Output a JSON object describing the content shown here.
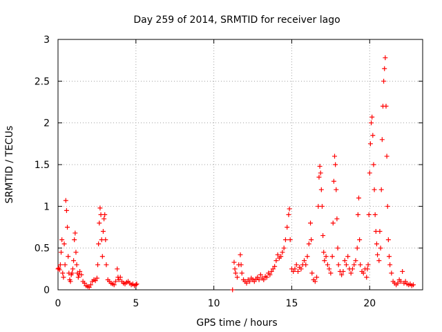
{
  "chart_data": {
    "type": "scatter",
    "title": "Day 259 of 2014, SRMTID for receiver lago",
    "xlabel": "GPS time / hours",
    "ylabel": "SRMTID / TECUs",
    "xlim": [
      0,
      23.4
    ],
    "ylim": [
      0,
      3
    ],
    "xticks": [
      0,
      5,
      10,
      15,
      20
    ],
    "xtick_labels": [
      "0",
      "5",
      "10",
      "15",
      "20"
    ],
    "yticks": [
      0,
      0.5,
      1,
      1.5,
      2,
      2.5,
      3
    ],
    "ytick_labels": [
      "0",
      "0.5",
      "1",
      "1.5",
      "2",
      "2.5",
      "3"
    ],
    "grid": true,
    "marker": "+",
    "marker_color": "#ff0000",
    "series": [
      {
        "name": "SRMTID",
        "points": [
          [
            0.0,
            0.25
          ],
          [
            0.05,
            0.26
          ],
          [
            0.1,
            0.24
          ],
          [
            0.15,
            0.3
          ],
          [
            0.2,
            0.45
          ],
          [
            0.25,
            0.6
          ],
          [
            0.3,
            0.2
          ],
          [
            0.35,
            0.15
          ],
          [
            0.4,
            0.55
          ],
          [
            0.45,
            0.3
          ],
          [
            0.5,
            1.07
          ],
          [
            0.55,
            0.95
          ],
          [
            0.6,
            0.75
          ],
          [
            0.65,
            0.4
          ],
          [
            0.7,
            0.2
          ],
          [
            0.75,
            0.12
          ],
          [
            0.8,
            0.1
          ],
          [
            0.85,
            0.18
          ],
          [
            0.9,
            0.2
          ],
          [
            0.95,
            0.25
          ],
          [
            1.0,
            0.35
          ],
          [
            1.05,
            0.6
          ],
          [
            1.1,
            0.68
          ],
          [
            1.15,
            0.45
          ],
          [
            1.2,
            0.3
          ],
          [
            1.25,
            0.2
          ],
          [
            1.3,
            0.15
          ],
          [
            1.35,
            0.18
          ],
          [
            1.4,
            0.22
          ],
          [
            1.5,
            0.18
          ],
          [
            1.6,
            0.1
          ],
          [
            1.7,
            0.08
          ],
          [
            1.8,
            0.05
          ],
          [
            1.9,
            0.04
          ],
          [
            2.0,
            0.03
          ],
          [
            2.1,
            0.06
          ],
          [
            2.2,
            0.1
          ],
          [
            2.3,
            0.12
          ],
          [
            2.4,
            0.11
          ],
          [
            2.5,
            0.14
          ],
          [
            2.55,
            0.3
          ],
          [
            2.6,
            0.55
          ],
          [
            2.65,
            0.8
          ],
          [
            2.7,
            0.98
          ],
          [
            2.75,
            0.9
          ],
          [
            2.8,
            0.6
          ],
          [
            2.85,
            0.4
          ],
          [
            2.9,
            0.7
          ],
          [
            2.95,
            0.85
          ],
          [
            3.0,
            0.9
          ],
          [
            3.05,
            0.6
          ],
          [
            3.1,
            0.3
          ],
          [
            3.2,
            0.12
          ],
          [
            3.3,
            0.1
          ],
          [
            3.4,
            0.08
          ],
          [
            3.5,
            0.07
          ],
          [
            3.6,
            0.06
          ],
          [
            3.7,
            0.1
          ],
          [
            3.8,
            0.25
          ],
          [
            3.85,
            0.15
          ],
          [
            3.9,
            0.12
          ],
          [
            4.0,
            0.15
          ],
          [
            4.1,
            0.1
          ],
          [
            4.2,
            0.08
          ],
          [
            4.3,
            0.07
          ],
          [
            4.4,
            0.09
          ],
          [
            4.5,
            0.1
          ],
          [
            4.6,
            0.08
          ],
          [
            4.7,
            0.06
          ],
          [
            4.8,
            0.07
          ],
          [
            4.9,
            0.05
          ],
          [
            5.0,
            0.06
          ],
          [
            5.05,
            0.07
          ],
          [
            11.2,
            0.0
          ],
          [
            11.3,
            0.33
          ],
          [
            11.35,
            0.25
          ],
          [
            11.4,
            0.2
          ],
          [
            11.5,
            0.15
          ],
          [
            11.6,
            0.3
          ],
          [
            11.7,
            0.42
          ],
          [
            11.75,
            0.3
          ],
          [
            11.8,
            0.2
          ],
          [
            11.9,
            0.12
          ],
          [
            12.0,
            0.1
          ],
          [
            12.1,
            0.08
          ],
          [
            12.2,
            0.12
          ],
          [
            12.3,
            0.1
          ],
          [
            12.4,
            0.14
          ],
          [
            12.5,
            0.12
          ],
          [
            12.6,
            0.1
          ],
          [
            12.7,
            0.13
          ],
          [
            12.8,
            0.15
          ],
          [
            12.9,
            0.12
          ],
          [
            13.0,
            0.18
          ],
          [
            13.1,
            0.14
          ],
          [
            13.2,
            0.12
          ],
          [
            13.3,
            0.16
          ],
          [
            13.4,
            0.15
          ],
          [
            13.5,
            0.2
          ],
          [
            13.6,
            0.18
          ],
          [
            13.7,
            0.22
          ],
          [
            13.8,
            0.25
          ],
          [
            13.9,
            0.28
          ],
          [
            14.0,
            0.35
          ],
          [
            14.1,
            0.42
          ],
          [
            14.2,
            0.38
          ],
          [
            14.3,
            0.4
          ],
          [
            14.4,
            0.45
          ],
          [
            14.5,
            0.5
          ],
          [
            14.6,
            0.6
          ],
          [
            14.7,
            0.75
          ],
          [
            14.8,
            0.9
          ],
          [
            14.85,
            0.97
          ],
          [
            14.9,
            0.6
          ],
          [
            15.0,
            0.25
          ],
          [
            15.1,
            0.22
          ],
          [
            15.2,
            0.25
          ],
          [
            15.3,
            0.3
          ],
          [
            15.4,
            0.22
          ],
          [
            15.5,
            0.27
          ],
          [
            15.6,
            0.25
          ],
          [
            15.7,
            0.3
          ],
          [
            15.8,
            0.35
          ],
          [
            15.9,
            0.3
          ],
          [
            16.0,
            0.4
          ],
          [
            16.1,
            0.55
          ],
          [
            16.2,
            0.8
          ],
          [
            16.25,
            0.6
          ],
          [
            16.3,
            0.2
          ],
          [
            16.4,
            0.12
          ],
          [
            16.5,
            0.1
          ],
          [
            16.6,
            0.15
          ],
          [
            16.7,
            1.0
          ],
          [
            16.75,
            1.35
          ],
          [
            16.8,
            1.48
          ],
          [
            16.85,
            1.4
          ],
          [
            16.9,
            1.2
          ],
          [
            16.95,
            1.0
          ],
          [
            17.0,
            0.65
          ],
          [
            17.05,
            0.45
          ],
          [
            17.1,
            0.35
          ],
          [
            17.2,
            0.4
          ],
          [
            17.3,
            0.3
          ],
          [
            17.4,
            0.25
          ],
          [
            17.5,
            0.2
          ],
          [
            17.6,
            0.4
          ],
          [
            17.65,
            0.8
          ],
          [
            17.7,
            1.3
          ],
          [
            17.75,
            1.6
          ],
          [
            17.8,
            1.5
          ],
          [
            17.85,
            1.2
          ],
          [
            17.9,
            0.85
          ],
          [
            17.95,
            0.5
          ],
          [
            18.0,
            0.3
          ],
          [
            18.1,
            0.22
          ],
          [
            18.2,
            0.18
          ],
          [
            18.3,
            0.22
          ],
          [
            18.4,
            0.35
          ],
          [
            18.5,
            0.3
          ],
          [
            18.6,
            0.4
          ],
          [
            18.7,
            0.25
          ],
          [
            18.8,
            0.2
          ],
          [
            18.9,
            0.25
          ],
          [
            19.0,
            0.3
          ],
          [
            19.1,
            0.35
          ],
          [
            19.2,
            0.5
          ],
          [
            19.25,
            0.9
          ],
          [
            19.3,
            1.1
          ],
          [
            19.35,
            0.6
          ],
          [
            19.4,
            0.3
          ],
          [
            19.5,
            0.22
          ],
          [
            19.6,
            0.2
          ],
          [
            19.7,
            0.25
          ],
          [
            19.8,
            0.15
          ],
          [
            19.85,
            0.25
          ],
          [
            19.9,
            0.3
          ],
          [
            19.95,
            0.9
          ],
          [
            20.0,
            1.4
          ],
          [
            20.05,
            1.75
          ],
          [
            20.1,
            2.0
          ],
          [
            20.15,
            2.07
          ],
          [
            20.2,
            1.85
          ],
          [
            20.25,
            1.5
          ],
          [
            20.3,
            1.2
          ],
          [
            20.35,
            0.9
          ],
          [
            20.4,
            0.7
          ],
          [
            20.45,
            0.55
          ],
          [
            20.5,
            0.42
          ],
          [
            20.6,
            0.35
          ],
          [
            20.65,
            0.7
          ],
          [
            20.7,
            0.5
          ],
          [
            20.75,
            1.2
          ],
          [
            20.8,
            1.8
          ],
          [
            20.85,
            2.2
          ],
          [
            20.9,
            2.5
          ],
          [
            20.95,
            2.65
          ],
          [
            21.0,
            2.78
          ],
          [
            21.05,
            2.2
          ],
          [
            21.1,
            1.6
          ],
          [
            21.15,
            1.0
          ],
          [
            21.2,
            0.6
          ],
          [
            21.25,
            0.4
          ],
          [
            21.3,
            0.3
          ],
          [
            21.4,
            0.2
          ],
          [
            21.5,
            0.1
          ],
          [
            21.6,
            0.08
          ],
          [
            21.7,
            0.06
          ],
          [
            21.8,
            0.08
          ],
          [
            21.9,
            0.12
          ],
          [
            22.0,
            0.1
          ],
          [
            22.1,
            0.22
          ],
          [
            22.2,
            0.08
          ],
          [
            22.3,
            0.1
          ],
          [
            22.4,
            0.07
          ],
          [
            22.5,
            0.06
          ],
          [
            22.6,
            0.07
          ],
          [
            22.7,
            0.05
          ],
          [
            22.8,
            0.06
          ]
        ]
      }
    ]
  }
}
